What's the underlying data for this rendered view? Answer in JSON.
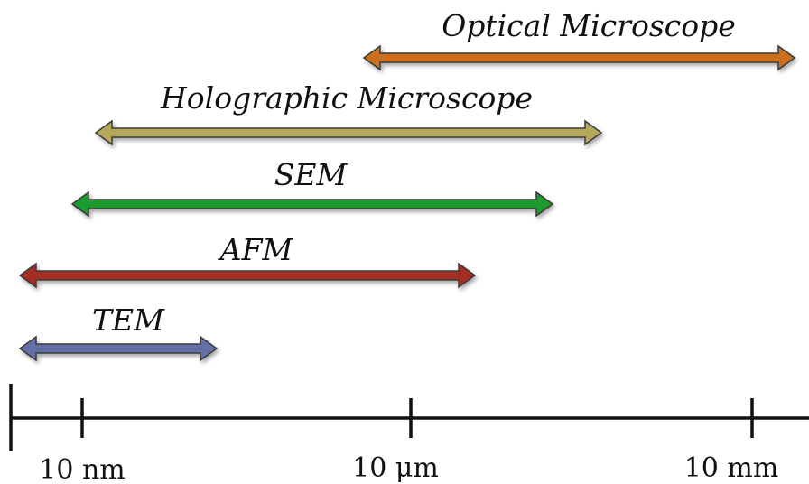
{
  "ranges": [
    {
      "id": "optical",
      "label": "Optical Microscope",
      "color": "#cc6e1a"
    },
    {
      "id": "holographic",
      "label": "Holographic Microscope",
      "color": "#b5a85a"
    },
    {
      "id": "sem",
      "label": "SEM",
      "color": "#1f9a2e"
    },
    {
      "id": "afm",
      "label": "AFM",
      "color": "#a42e22"
    },
    {
      "id": "tem",
      "label": "TEM",
      "color": "#6470a8"
    }
  ],
  "axis": {
    "ticks": [
      {
        "id": "nm",
        "label": "10 nm"
      },
      {
        "id": "um",
        "label": "10 μm"
      },
      {
        "id": "mm",
        "label": "10 mm"
      }
    ]
  }
}
